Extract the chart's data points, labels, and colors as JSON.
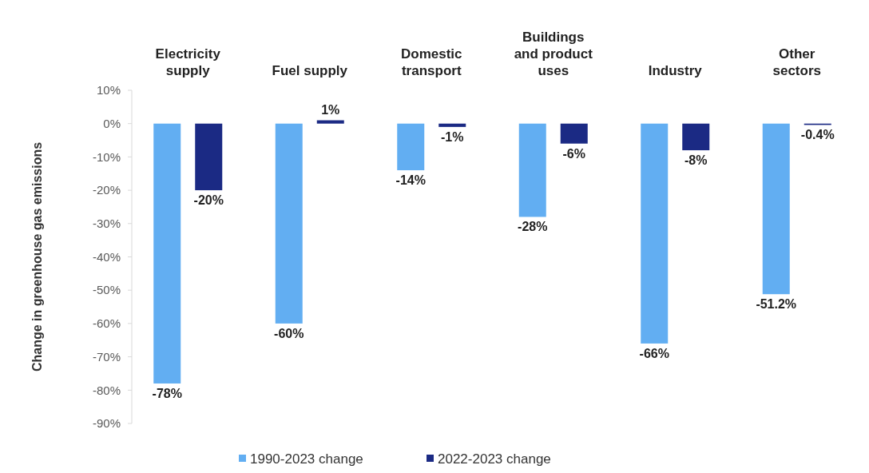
{
  "chart_data": {
    "type": "bar",
    "ylabel": "Change in greenhouse gas emissions",
    "categories": [
      "Electricity supply",
      "Fuel supply",
      "Domestic transport",
      "Buildings and product uses",
      "Industry",
      "Other sectors"
    ],
    "series": [
      {
        "name": "1990-2023 change",
        "color": "#62aef2",
        "values": [
          -78,
          -60,
          -14,
          -28,
          -66,
          -51.2
        ],
        "value_labels": [
          "-78%",
          "-60%",
          "-14%",
          "-28%",
          "-66%",
          "-51.2%"
        ]
      },
      {
        "name": "2022-2023 change",
        "color": "#1b2a84",
        "values": [
          -20,
          1,
          -1,
          -6,
          -8,
          -0.4
        ],
        "value_labels": [
          "-20%",
          "1%",
          "-1%",
          "-6%",
          "-8%",
          "-0.4%"
        ]
      }
    ],
    "ylim": [
      -90,
      10
    ],
    "yticks": [
      {
        "value": 10,
        "label": "10%"
      },
      {
        "value": 0,
        "label": "0%"
      },
      {
        "value": -10,
        "label": "-10%"
      },
      {
        "value": -20,
        "label": "-20%"
      },
      {
        "value": -30,
        "label": "-30%"
      },
      {
        "value": -40,
        "label": "-40%"
      },
      {
        "value": -50,
        "label": "-50%"
      },
      {
        "value": -60,
        "label": "-60%"
      },
      {
        "value": -70,
        "label": "-70%"
      },
      {
        "value": -80,
        "label": "-80%"
      },
      {
        "value": -90,
        "label": "-90%"
      }
    ],
    "legend": "bottom"
  }
}
